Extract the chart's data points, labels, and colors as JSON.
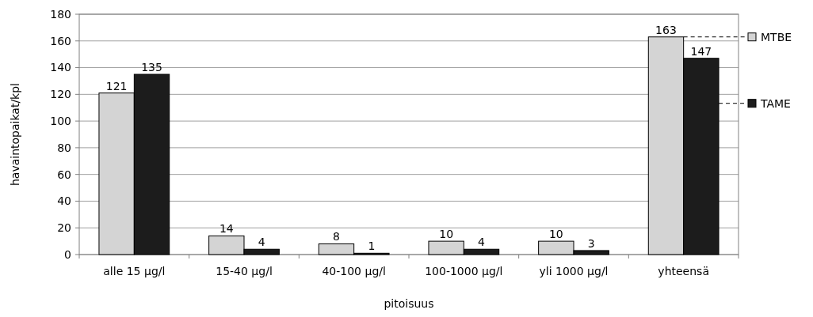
{
  "chart_data": {
    "type": "bar",
    "xlabel": "pitoisuus",
    "ylabel": "havaintopaikat/kpl",
    "categories": [
      "alle 15 µg/l",
      "15-40 µg/l",
      "40-100 µg/l",
      "100-1000 µg/l",
      "yli 1000 µg/l",
      "yhteensä"
    ],
    "series": [
      {
        "name": "MTBE",
        "color": "#d4d4d4",
        "values": [
          121,
          14,
          8,
          10,
          10,
          163
        ]
      },
      {
        "name": "TAME",
        "color": "#1c1c1c",
        "values": [
          135,
          4,
          1,
          4,
          3,
          147
        ]
      }
    ],
    "ylim": [
      0,
      180
    ],
    "yticks": [
      0,
      20,
      40,
      60,
      80,
      100,
      120,
      140,
      160,
      180
    ],
    "grid": "y",
    "legend": "right",
    "data_labels": true
  }
}
